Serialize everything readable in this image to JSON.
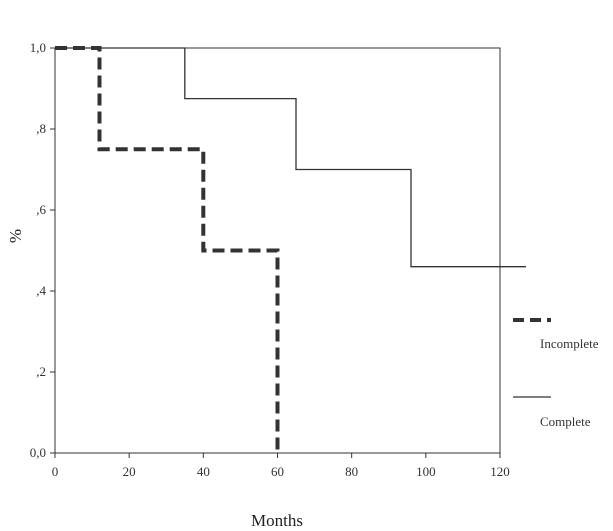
{
  "chart_data": {
    "type": "line",
    "step": true,
    "xlabel": "Months",
    "ylabel": "%",
    "xlim": [
      0,
      120
    ],
    "ylim": [
      0,
      1
    ],
    "x_ticks": [
      "0",
      "20",
      "40",
      "60",
      "80",
      "100",
      "120"
    ],
    "y_ticks": [
      "0,0",
      ",2",
      ",4",
      ",6",
      ",8",
      "1,0"
    ],
    "grid": false,
    "legend_position": "right",
    "series": [
      {
        "name": "Incomplete",
        "style": "dashed",
        "color": "#333333",
        "x": [
          0,
          12,
          12,
          40,
          40,
          60,
          60
        ],
        "y": [
          1.0,
          1.0,
          0.75,
          0.75,
          0.5,
          0.5,
          0.0
        ]
      },
      {
        "name": "Complete",
        "style": "solid",
        "color": "#333333",
        "x": [
          0,
          35,
          35,
          65,
          65,
          96,
          96,
          127
        ],
        "y": [
          1.0,
          1.0,
          0.875,
          0.875,
          0.7,
          0.7,
          0.46,
          0.46
        ]
      }
    ]
  }
}
